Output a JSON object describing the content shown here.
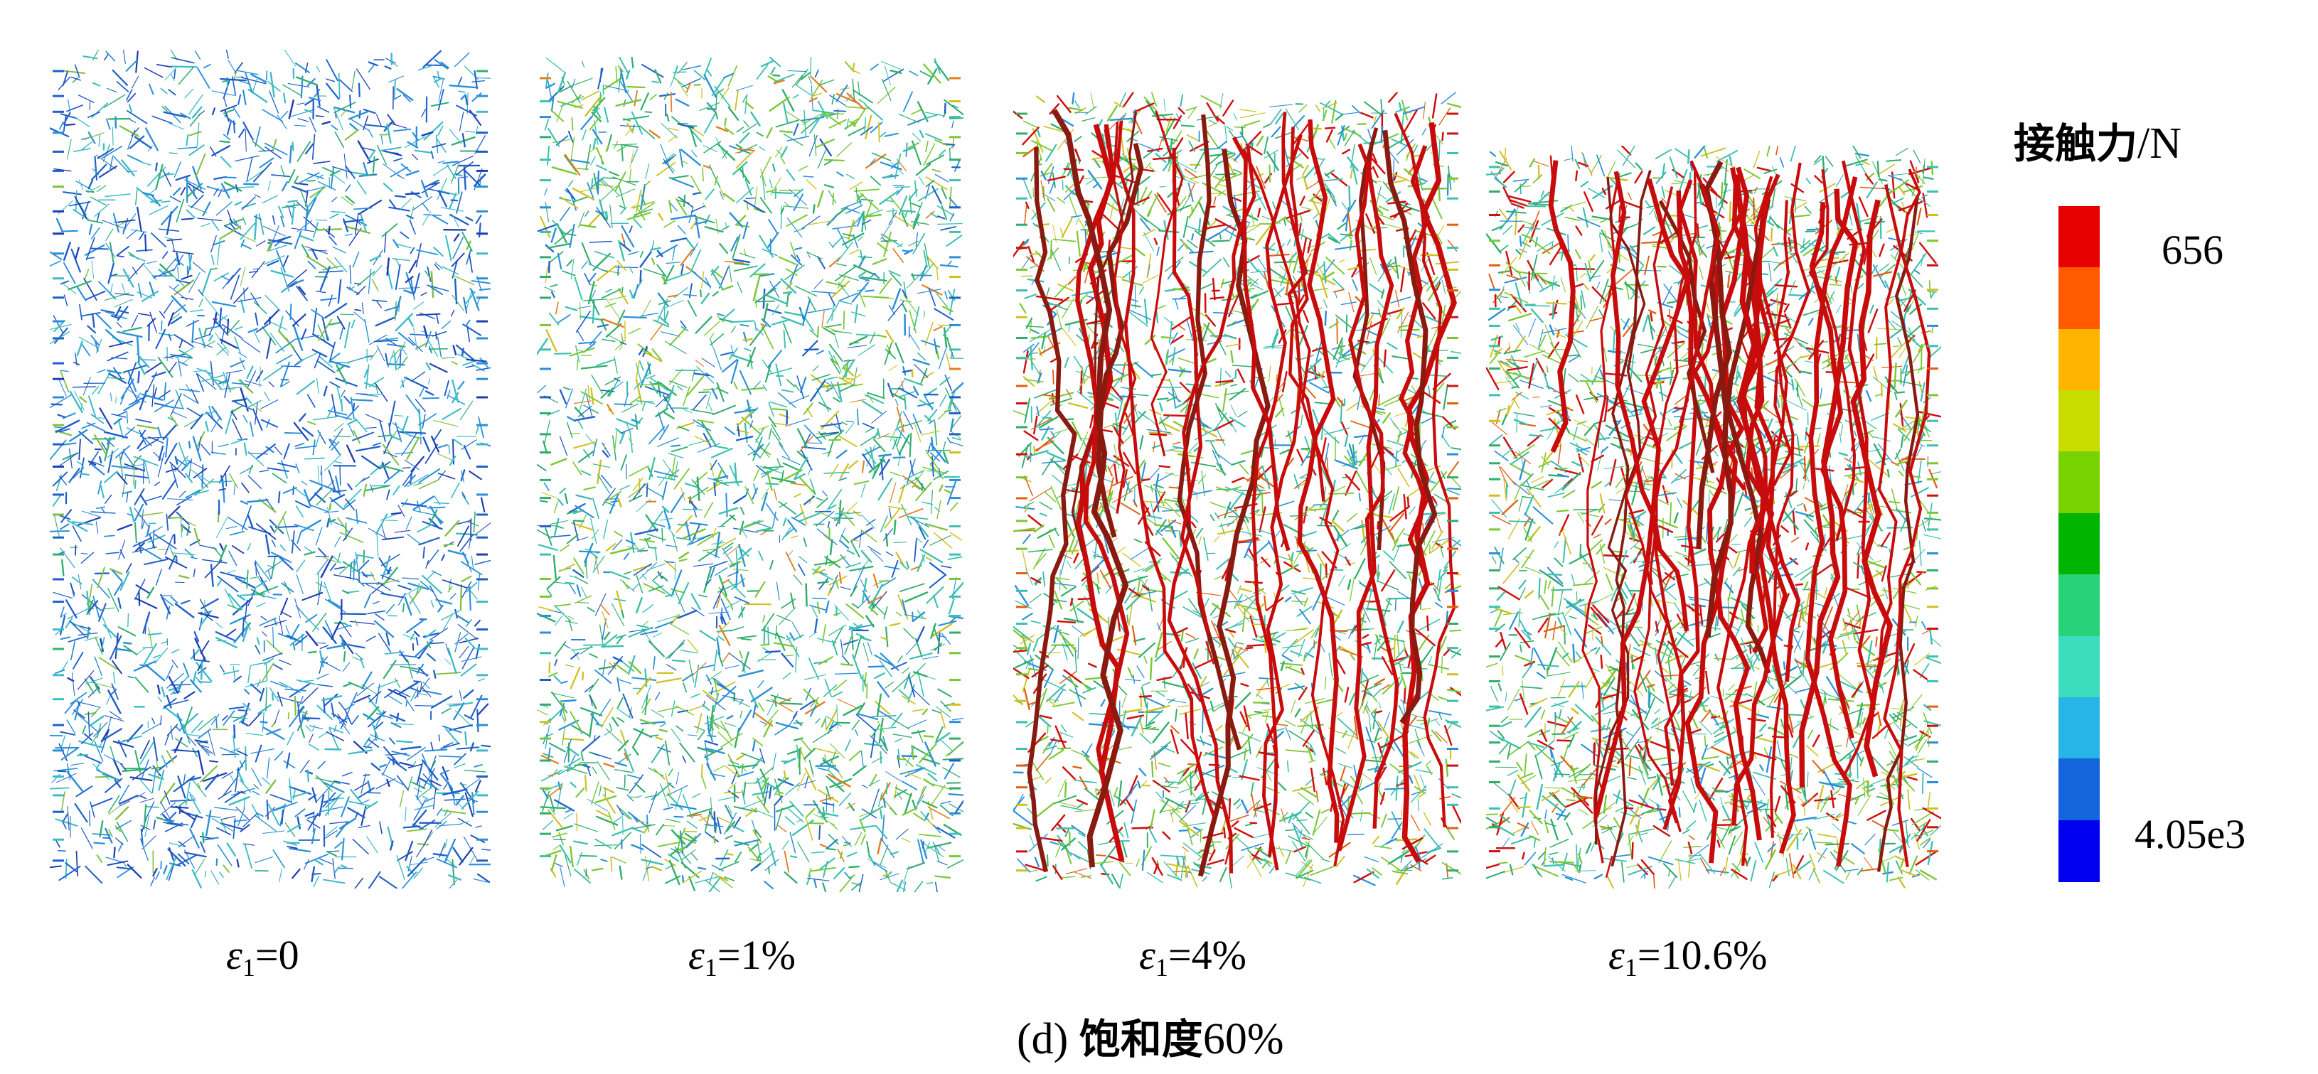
{
  "panels": [
    {
      "id": "p0",
      "label_symbol": "ε",
      "label_sub": "1",
      "label_value": "=0",
      "dominant": "blue"
    },
    {
      "id": "p1",
      "label_symbol": "ε",
      "label_sub": "1",
      "label_value": "=1%",
      "dominant": "green"
    },
    {
      "id": "p2",
      "label_symbol": "ε",
      "label_sub": "1",
      "label_value": "=4%",
      "dominant": "mixed-red"
    },
    {
      "id": "p3",
      "label_symbol": "ε",
      "label_sub": "1",
      "label_value": "=10.6%",
      "dominant": "mixed-red"
    }
  ],
  "colorbar": {
    "title_zh": "接触力",
    "title_unit": "/N",
    "max_label": "656",
    "min_label": "4.05e3",
    "colors": [
      "#e60000",
      "#ff5a00",
      "#ffb400",
      "#c8dc00",
      "#78d200",
      "#00b400",
      "#28d278",
      "#3cdcbe",
      "#28b4e6",
      "#1464dc",
      "#0000f0"
    ]
  },
  "figure_caption": {
    "prefix": "(d) ",
    "zh": "饱和度",
    "value": "60%"
  }
}
